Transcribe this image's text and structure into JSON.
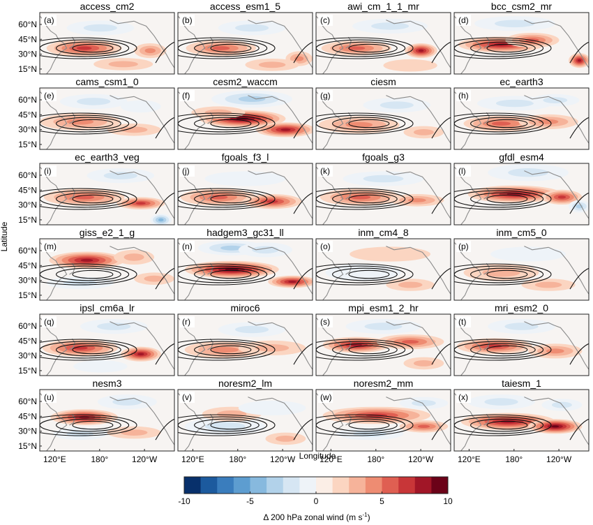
{
  "chart_data": {
    "type": "heatmap",
    "xlabel": "Longitude",
    "ylabel": "Latitude",
    "x_ticks": [
      "120°E",
      "180°",
      "120°W"
    ],
    "y_ticks": [
      "60°N",
      "45°N",
      "30°N",
      "15°N"
    ],
    "lon_range": [
      100,
      280
    ],
    "lat_range": [
      10,
      72
    ],
    "panels": [
      {
        "letter": "(a)",
        "title": "access_cm2"
      },
      {
        "letter": "(b)",
        "title": "access_esm1_5"
      },
      {
        "letter": "(c)",
        "title": "awi_cm_1_1_mr"
      },
      {
        "letter": "(d)",
        "title": "bcc_csm2_mr"
      },
      {
        "letter": "(e)",
        "title": "cams_csm1_0"
      },
      {
        "letter": "(f)",
        "title": "cesm2_waccm"
      },
      {
        "letter": "(g)",
        "title": "ciesm"
      },
      {
        "letter": "(h)",
        "title": "ec_earth3"
      },
      {
        "letter": "(i)",
        "title": "ec_earth3_veg"
      },
      {
        "letter": "(j)",
        "title": "fgoals_f3_l"
      },
      {
        "letter": "(k)",
        "title": "fgoals_g3"
      },
      {
        "letter": "(l)",
        "title": "gfdl_esm4"
      },
      {
        "letter": "(m)",
        "title": "giss_e2_1_g"
      },
      {
        "letter": "(n)",
        "title": "hadgem3_gc31_ll"
      },
      {
        "letter": "(o)",
        "title": "inm_cm4_8"
      },
      {
        "letter": "(p)",
        "title": "inm_cm5_0"
      },
      {
        "letter": "(q)",
        "title": "ipsl_cm6a_lr"
      },
      {
        "letter": "(r)",
        "title": "miroc6"
      },
      {
        "letter": "(s)",
        "title": "mpi_esm1_2_hr"
      },
      {
        "letter": "(t)",
        "title": "mri_esm2_0"
      },
      {
        "letter": "(u)",
        "title": "nesm3"
      },
      {
        "letter": "(v)",
        "title": "noresm2_lm"
      },
      {
        "letter": "(w)",
        "title": "noresm2_mm"
      },
      {
        "letter": "(x)",
        "title": "taiesm_1"
      }
    ],
    "colorbar": {
      "label_prefix": "Δ 200 hPa zonal wind (m s",
      "label_exp": "-1",
      "label_suffix": ")",
      "range": [
        -10,
        10
      ],
      "ticks": [
        "-10",
        "-5",
        "0",
        "5",
        "10"
      ],
      "colors": [
        "#08306b",
        "#1c5a9e",
        "#3a7dbd",
        "#5d9dd0",
        "#87b9de",
        "#b2d2ea",
        "#d6e6f3",
        "#eef3f8",
        "#fbeee6",
        "#fbd5c1",
        "#f6b39a",
        "#ee8c72",
        "#df5f52",
        "#c83638",
        "#a11627",
        "#6b0218"
      ]
    }
  }
}
